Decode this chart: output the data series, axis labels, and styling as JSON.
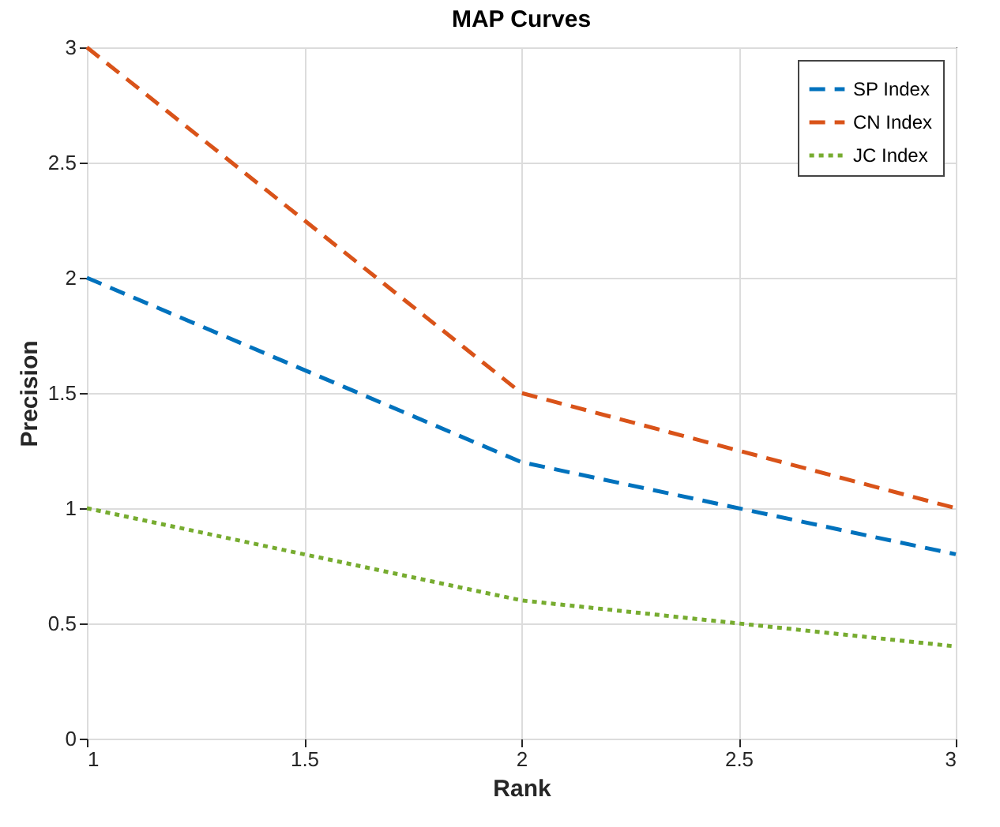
{
  "chart_data": {
    "type": "line",
    "title": "MAP Curves",
    "xlabel": "Rank",
    "ylabel": "Precision",
    "x": [
      1,
      2,
      3
    ],
    "series": [
      {
        "name": "SP Index",
        "color": "#0072bd",
        "line_style": "dashed",
        "values": [
          2,
          1.2,
          0.8
        ]
      },
      {
        "name": "CN Index",
        "color": "#d95319",
        "line_style": "dashed",
        "values": [
          3,
          1.5,
          1
        ]
      },
      {
        "name": "JC Index",
        "color": "#77ac30",
        "line_style": "dotted",
        "values": [
          1,
          0.6,
          0.4
        ]
      }
    ],
    "xlim": [
      1,
      3
    ],
    "xticks": [
      1,
      1.5,
      2,
      2.5,
      3
    ],
    "ylim": [
      0,
      3
    ],
    "yticks": [
      0,
      0.5,
      1,
      1.5,
      2,
      2.5,
      3
    ],
    "grid": true,
    "legend": "top right",
    "marker": "none"
  }
}
